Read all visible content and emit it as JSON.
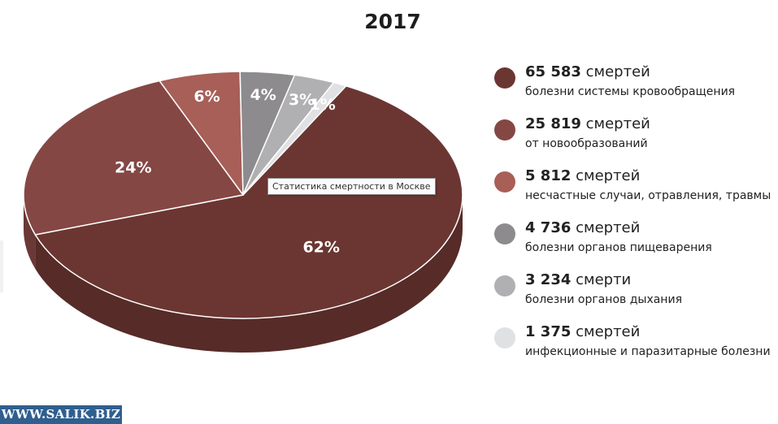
{
  "chart_data": {
    "type": "pie",
    "title": "2017",
    "slices": [
      {
        "percent": 62,
        "label": "62%",
        "count": "65 583",
        "unit": "смертей",
        "description": "болезни системы кровообращения",
        "color": "#6b3632"
      },
      {
        "percent": 24,
        "label": "24%",
        "count": "25 819",
        "unit": "смертей",
        "description": "от новообразований",
        "color": "#854744"
      },
      {
        "percent": 6,
        "label": "6%",
        "count": "5 812",
        "unit": "смертей",
        "description": "несчастные случаи, отравления, травмы",
        "color": "#a75f57"
      },
      {
        "percent": 4,
        "label": "4%",
        "count": "4 736",
        "unit": "смертей",
        "description": "болезни органов пищеварения",
        "color": "#8d8b8e"
      },
      {
        "percent": 3,
        "label": "3%",
        "count": "3 234",
        "unit": "смерти",
        "description": "болезни органов дыхания",
        "color": "#b0afb2"
      },
      {
        "percent": 1,
        "label": "1%",
        "count": "1 375",
        "unit": "смертей",
        "description": "инфекционные и паразитарные болезни",
        "color": "#dfe1e3"
      }
    ],
    "legend": "right"
  },
  "tooltip": "Статистика смертности в Москве",
  "watermark": "WWW.SALIK.BIZ"
}
